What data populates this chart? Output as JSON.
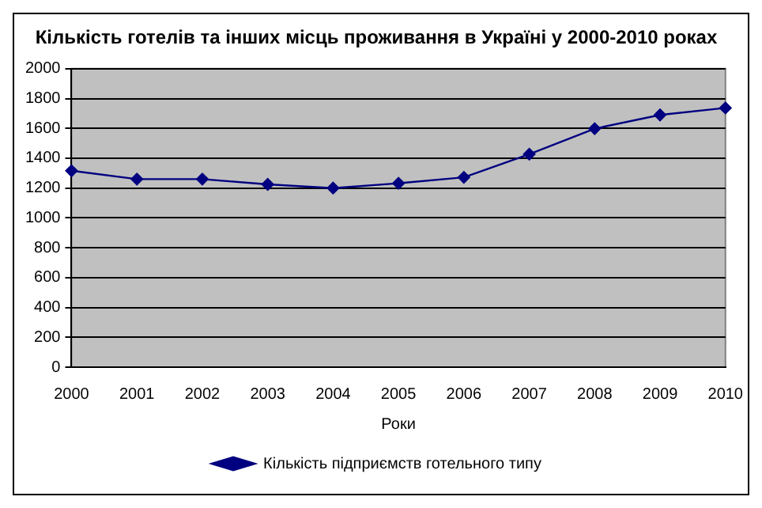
{
  "chart_data": {
    "type": "line",
    "title": "Кількість готелів та інших місць проживання в Україні у 2000-2010 роках",
    "xlabel": "Роки",
    "categories": [
      "2000",
      "2001",
      "2002",
      "2003",
      "2004",
      "2005",
      "2006",
      "2007",
      "2008",
      "2009",
      "2010"
    ],
    "series": [
      {
        "name": "Кількість підприємств готельного типу",
        "color": "#000080",
        "values": [
          1316,
          1260,
          1260,
          1225,
          1200,
          1232,
          1272,
          1427,
          1598,
          1690,
          1737
        ]
      }
    ],
    "ylim": [
      0,
      2000
    ],
    "yticks": [
      0,
      200,
      400,
      600,
      800,
      1000,
      1200,
      1400,
      1600,
      1800,
      2000
    ],
    "grid": "y",
    "legend": "bottom",
    "marker": "diamond",
    "line_style": "solid"
  }
}
